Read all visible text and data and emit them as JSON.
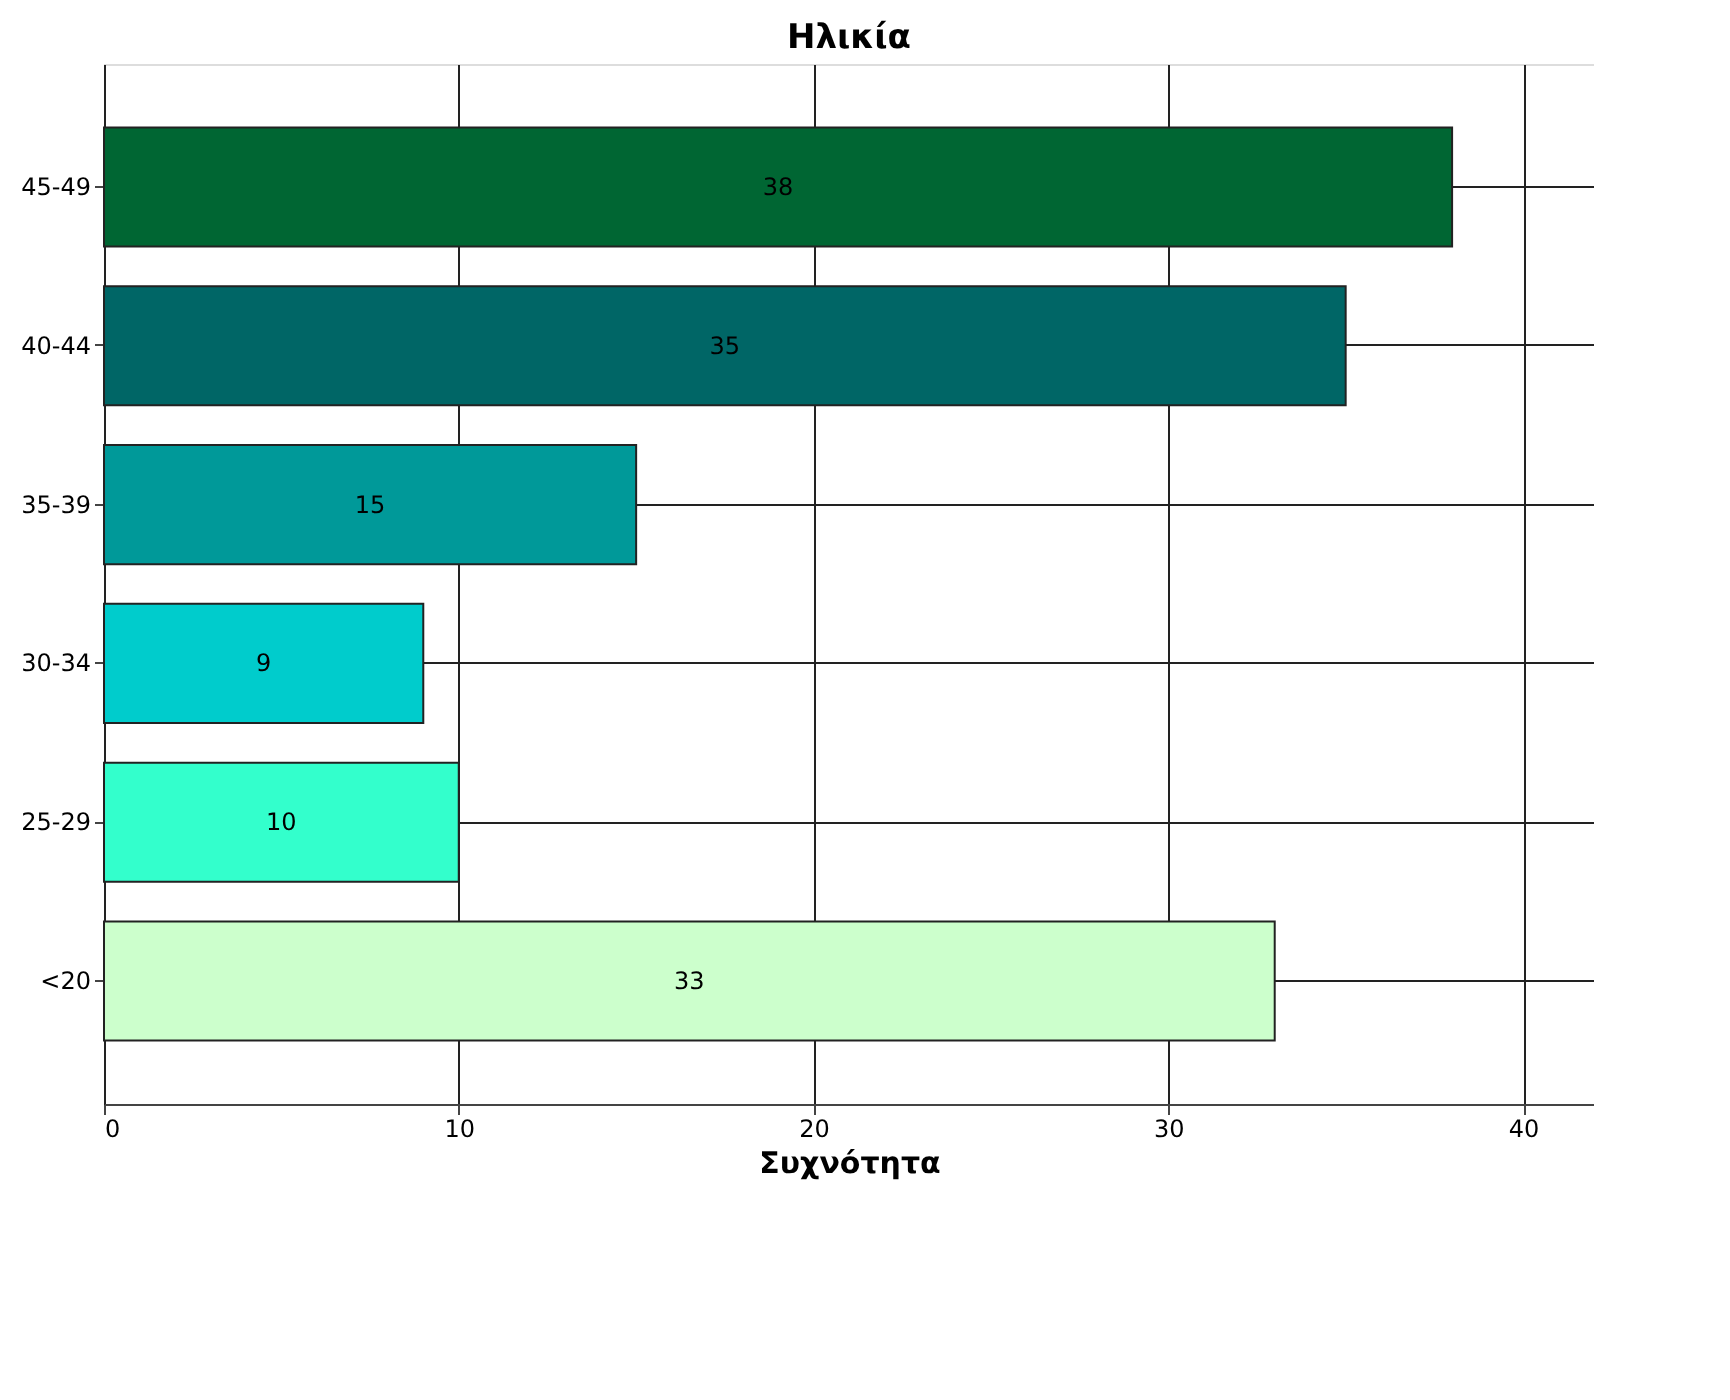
{
  "chart_data": {
    "type": "bar",
    "orientation": "horizontal",
    "title": "Ηλικία",
    "xlabel": "Συχνότητα",
    "categories": [
      "45-49",
      "40-44",
      "35-39",
      "30-34",
      "25-29",
      "<20"
    ],
    "values": [
      38,
      35,
      15,
      9,
      10,
      33
    ],
    "colors": [
      "#006633",
      "#006666",
      "#009999",
      "#00cccc",
      "#33ffcc",
      "#ccffcc"
    ],
    "xlim": [
      0,
      42
    ],
    "xticks": [
      0,
      10,
      20,
      30,
      40
    ],
    "grid": true,
    "data_labels": true
  }
}
